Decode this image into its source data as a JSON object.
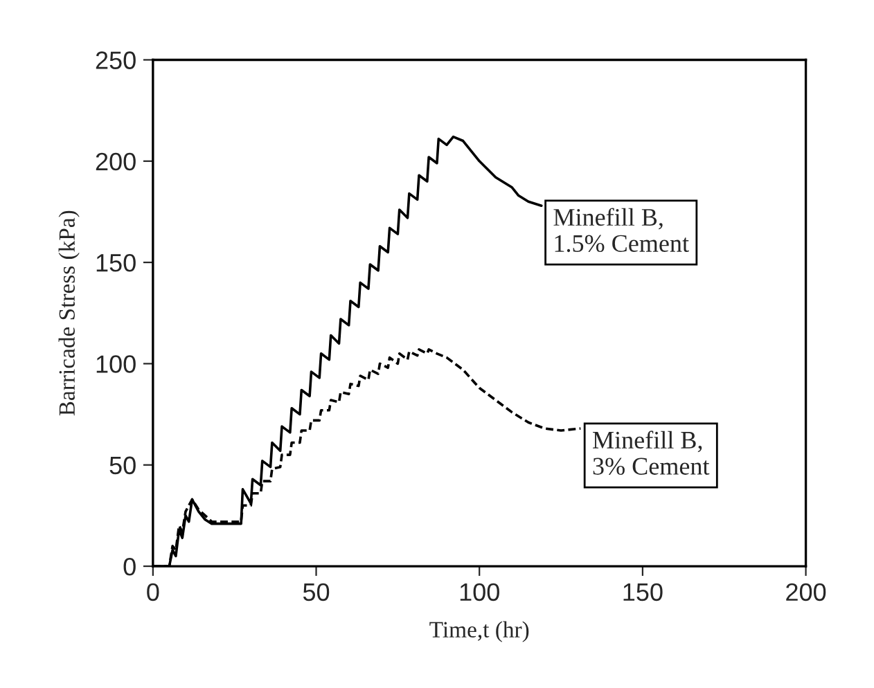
{
  "chart_data": {
    "type": "line",
    "xlabel": "Time,t (hr)",
    "ylabel": "Barricade Stress (kPa)",
    "xlim": [
      0,
      200
    ],
    "ylim": [
      0,
      250
    ],
    "xticks": [
      0,
      50,
      100,
      150,
      200
    ],
    "yticks": [
      0,
      50,
      100,
      150,
      200,
      250
    ],
    "grid": false,
    "legend": false,
    "series": [
      {
        "color": "#000000",
        "line_style": "solid",
        "x": [
          0,
          5,
          6,
          7,
          8,
          9,
          10,
          11,
          12,
          14,
          16,
          18,
          27,
          27.5,
          30,
          30.5,
          33,
          33.5,
          36,
          36.5,
          39,
          39.5,
          42,
          42.5,
          45,
          45.5,
          48,
          48.5,
          51,
          51.5,
          54,
          54.5,
          57,
          57.5,
          60,
          60.5,
          63,
          63.5,
          66,
          66.5,
          69,
          69.5,
          72,
          72.5,
          75,
          75.5,
          78,
          78.5,
          81,
          81.5,
          84,
          84.5,
          87,
          87.5,
          90,
          92,
          95,
          100,
          105,
          110,
          112,
          115,
          119
        ],
        "values": [
          0,
          0,
          8,
          5,
          18,
          14,
          25,
          22,
          33,
          27,
          23,
          21,
          21,
          38,
          31,
          43,
          40,
          52,
          49,
          61,
          57,
          69,
          66,
          78,
          75,
          87,
          84,
          96,
          93,
          105,
          102,
          114,
          110,
          122,
          119,
          131,
          128,
          140,
          137,
          149,
          146,
          158,
          155,
          167,
          164,
          176,
          172,
          184,
          181,
          193,
          190,
          202,
          199,
          211,
          208,
          212,
          210,
          200,
          192,
          187,
          183,
          180,
          178
        ]
      },
      {
        "color": "#000000",
        "line_style": "dashed",
        "x": [
          0,
          5,
          6,
          7,
          8,
          9,
          10,
          12,
          14,
          16,
          18,
          27,
          27.5,
          30,
          30.5,
          33,
          33.5,
          36,
          36.5,
          39,
          39.5,
          42,
          42.5,
          45,
          45.5,
          48,
          48.5,
          51,
          51.5,
          54,
          54.5,
          57,
          57.5,
          60,
          60.5,
          63,
          63.5,
          66,
          66.5,
          69,
          69.5,
          72,
          72.5,
          75,
          75.5,
          78,
          78.5,
          81,
          81.5,
          84,
          84.5,
          87,
          90,
          95,
          100,
          105,
          110,
          115,
          120,
          125,
          131
        ],
        "values": [
          0,
          0,
          10,
          8,
          20,
          17,
          27,
          33,
          28,
          25,
          22,
          22,
          30,
          30,
          36,
          36,
          42,
          42,
          48,
          49,
          55,
          55,
          61,
          61,
          67,
          67,
          72,
          72,
          77,
          77,
          82,
          81,
          86,
          85,
          90,
          89,
          94,
          92,
          97,
          95,
          100,
          98,
          103,
          100,
          105,
          102,
          106,
          104,
          107,
          105,
          107,
          105,
          103,
          97,
          88,
          82,
          76,
          71,
          68,
          67,
          68
        ]
      }
    ],
    "annotations": [
      {
        "text": "Minefill B,\n1.5% Cement",
        "x": 119,
        "y": 178
      },
      {
        "text": "Minefill B,\n3% Cement",
        "x": 131,
        "y": 68
      }
    ]
  }
}
